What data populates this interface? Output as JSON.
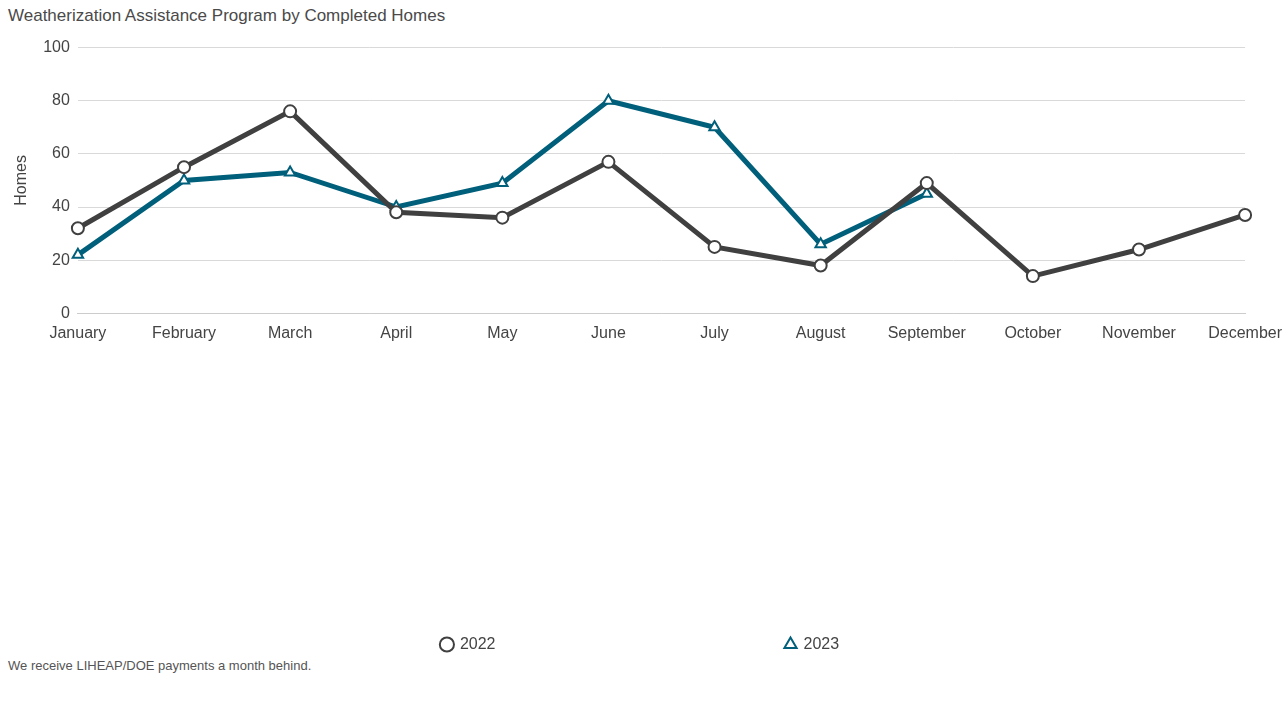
{
  "chart_data": {
    "type": "line",
    "title": "Weatherization Assistance Program by Completed Homes",
    "y_label": "Homes",
    "caption": "We receive LIHEAP/DOE payments a month behind.",
    "categories": [
      "January",
      "February",
      "March",
      "April",
      "May",
      "June",
      "July",
      "August",
      "September",
      "October",
      "November",
      "December"
    ],
    "series": [
      {
        "name": "2022",
        "color": "#404040",
        "marker": "circle",
        "values": [
          32,
          55,
          76,
          38,
          36,
          57,
          25,
          18,
          49,
          14,
          24,
          37
        ]
      },
      {
        "name": "2023",
        "color": "#005f7a",
        "marker": "triangle",
        "values": [
          22,
          50,
          53,
          40,
          49,
          80,
          70,
          26,
          45,
          null,
          null,
          null
        ]
      }
    ],
    "ylim": [
      0,
      100
    ],
    "yticks": [
      0,
      20,
      40,
      60,
      80,
      100
    ],
    "grid": true,
    "legend": "bottom"
  }
}
